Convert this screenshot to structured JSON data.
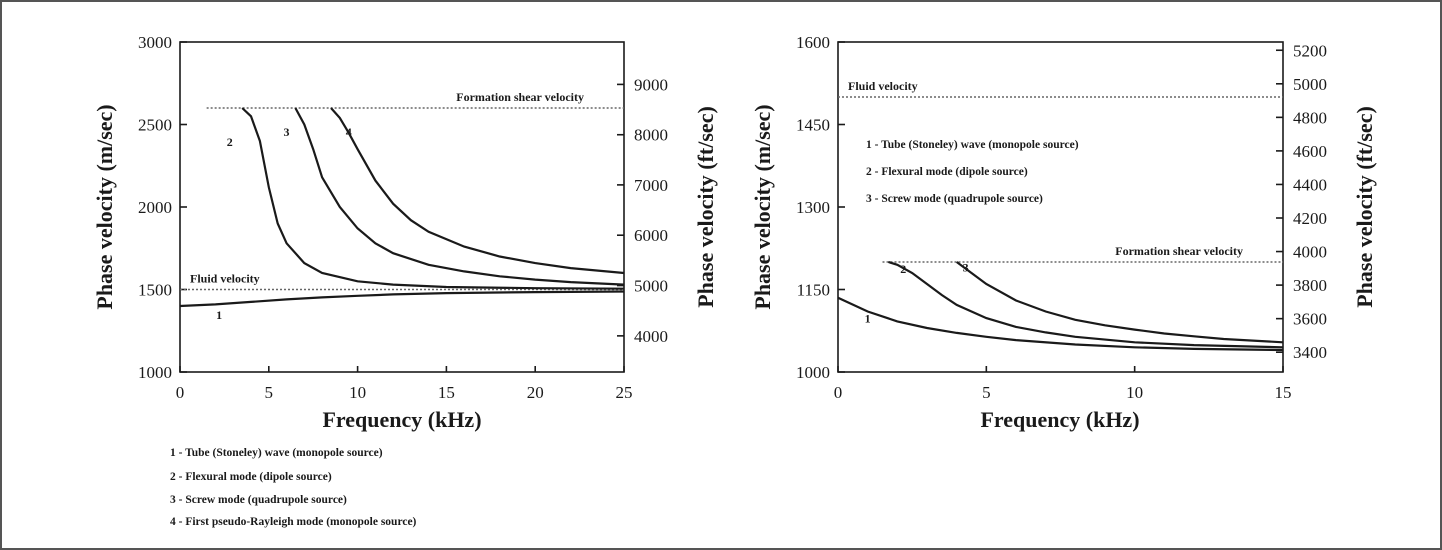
{
  "chart_data": [
    {
      "type": "line",
      "xlabel": "Frequency (kHz)",
      "ylabel": "Phase velocity (m/sec)",
      "ylabel_right": "Phase velocity (ft/sec)",
      "xlim": [
        0,
        25
      ],
      "ylim": [
        1000,
        3000
      ],
      "x_ticks": [
        "0",
        "5",
        "10",
        "15",
        "20",
        "25"
      ],
      "y_ticks": [
        "1000",
        "1500",
        "2000",
        "2500",
        "3000"
      ],
      "y_ticks_right": [
        {
          "label": "4000",
          "value": 1219
        },
        {
          "label": "5000",
          "value": 1524
        },
        {
          "label": "6000",
          "value": 1829
        },
        {
          "label": "7000",
          "value": 2134
        },
        {
          "label": "8000",
          "value": 2438
        },
        {
          "label": "9000",
          "value": 2743
        }
      ],
      "reference_lines": [
        {
          "label": "Formation shear velocity",
          "y": 2600,
          "x_start": 1.5
        },
        {
          "label": "Fluid velocity",
          "y": 1500,
          "x_start": 0
        }
      ],
      "series": [
        {
          "name": "1",
          "label_x": 2.2,
          "label_y": 1320,
          "x": [
            0,
            2,
            4,
            6,
            8,
            10,
            12,
            15,
            20,
            25
          ],
          "y": [
            1400,
            1410,
            1425,
            1440,
            1452,
            1462,
            1470,
            1478,
            1484,
            1488
          ]
        },
        {
          "name": "2",
          "label_x": 2.8,
          "label_y": 2370,
          "x": [
            3.5,
            4.0,
            4.5,
            5.0,
            5.5,
            6.0,
            7.0,
            8.0,
            10.0,
            12.0,
            15.0,
            20.0,
            25.0
          ],
          "y": [
            2600,
            2550,
            2400,
            2120,
            1900,
            1780,
            1660,
            1600,
            1550,
            1530,
            1515,
            1508,
            1505
          ]
        },
        {
          "name": "3",
          "label_x": 6.0,
          "label_y": 2430,
          "x": [
            6.5,
            7.0,
            7.5,
            8.0,
            9.0,
            10.0,
            11.0,
            12.0,
            14.0,
            16.0,
            18.0,
            20.0,
            22.0,
            25.0
          ],
          "y": [
            2600,
            2500,
            2350,
            2180,
            2000,
            1870,
            1780,
            1720,
            1650,
            1610,
            1580,
            1560,
            1545,
            1530
          ]
        },
        {
          "name": "4",
          "label_x": 9.5,
          "label_y": 2430,
          "x": [
            8.5,
            9.0,
            9.5,
            10.0,
            11.0,
            12.0,
            13.0,
            14.0,
            16.0,
            18.0,
            20.0,
            22.0,
            25.0
          ],
          "y": [
            2600,
            2540,
            2450,
            2350,
            2160,
            2020,
            1920,
            1850,
            1760,
            1700,
            1660,
            1630,
            1600
          ]
        }
      ],
      "legend": [
        "1 - Tube (Stoneley) wave (monopole source)",
        "2 - Flexural mode (dipole source)",
        "3 - Screw mode (quadrupole source)",
        "4 - First pseudo-Rayleigh mode (monopole source)"
      ],
      "legend_placement": "bottom-left"
    },
    {
      "type": "line",
      "xlabel": "Frequency (kHz)",
      "ylabel": "Phase velocity (m/sec)",
      "ylabel_right": "Phase velocity (ft/sec)",
      "xlim": [
        0,
        15
      ],
      "ylim": [
        1000,
        1600
      ],
      "x_ticks": [
        "0",
        "5",
        "10",
        "15"
      ],
      "y_ticks": [
        "1000",
        "1150",
        "1300",
        "1450",
        "1600"
      ],
      "y_ticks_right": [
        {
          "label": "3400",
          "value": 1036
        },
        {
          "label": "3600",
          "value": 1097
        },
        {
          "label": "3800",
          "value": 1158
        },
        {
          "label": "4000",
          "value": 1219
        },
        {
          "label": "4200",
          "value": 1280
        },
        {
          "label": "4400",
          "value": 1341
        },
        {
          "label": "4600",
          "value": 1402
        },
        {
          "label": "4800",
          "value": 1463
        },
        {
          "label": "5000",
          "value": 1524
        },
        {
          "label": "5200",
          "value": 1585
        }
      ],
      "reference_lines": [
        {
          "label": "Fluid velocity",
          "y": 1500,
          "x_start": 0
        },
        {
          "label": "Formation shear velocity",
          "y": 1200,
          "x_start": 1.5
        }
      ],
      "series": [
        {
          "name": "1",
          "label_x": 1.0,
          "label_y": 1090,
          "x": [
            0,
            1,
            2,
            3,
            4,
            5,
            6,
            8,
            10,
            12,
            15
          ],
          "y": [
            1135,
            1110,
            1092,
            1080,
            1071,
            1064,
            1058,
            1050,
            1045,
            1042,
            1040
          ]
        },
        {
          "name": "2",
          "label_x": 2.2,
          "label_y": 1180,
          "x": [
            1.7,
            2.0,
            2.5,
            3.0,
            3.5,
            4.0,
            5.0,
            6.0,
            7.0,
            8.0,
            10.0,
            12.0,
            15.0
          ],
          "y": [
            1200,
            1195,
            1180,
            1160,
            1140,
            1122,
            1098,
            1082,
            1072,
            1064,
            1054,
            1049,
            1045
          ]
        },
        {
          "name": "3",
          "label_x": 4.3,
          "label_y": 1183,
          "x": [
            4.0,
            4.5,
            5.0,
            6.0,
            7.0,
            8.0,
            9.0,
            10.0,
            11.0,
            12.0,
            13.0,
            15.0
          ],
          "y": [
            1200,
            1180,
            1160,
            1130,
            1110,
            1095,
            1085,
            1077,
            1070,
            1065,
            1060,
            1054
          ]
        }
      ],
      "legend": [
        "1 - Tube (Stoneley) wave (monopole source)",
        "2 - Flexural mode (dipole source)",
        "3 - Screw mode (quadrupole source)"
      ],
      "legend_placement": "inside-top-left"
    }
  ]
}
